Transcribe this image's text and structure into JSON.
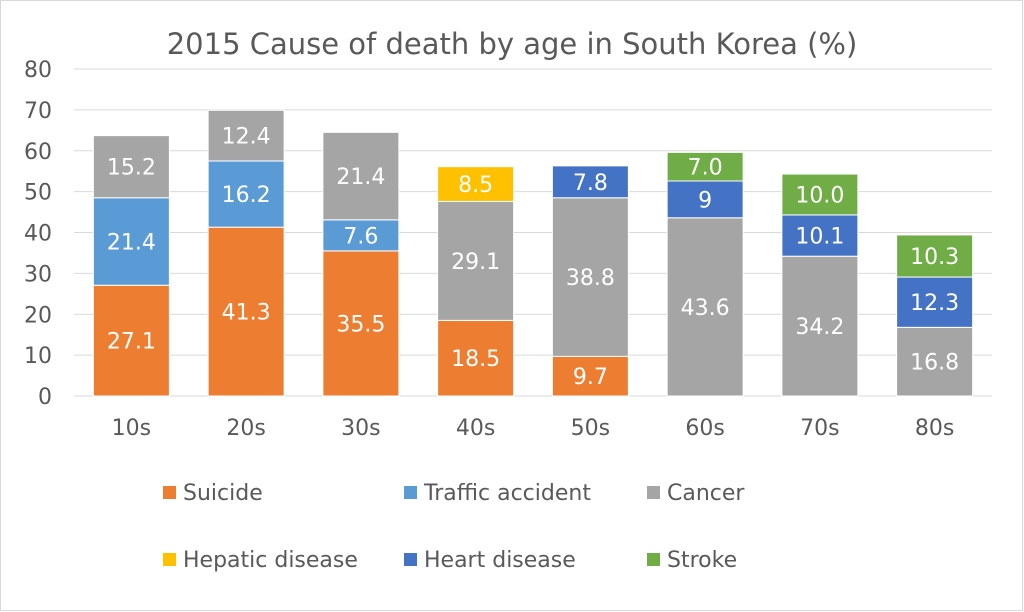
{
  "chart_data": {
    "type": "bar",
    "stacked": true,
    "title": "2015 Cause of death by age in South  Korea (%)",
    "xlabel": "",
    "ylabel": "",
    "ylim": [
      0,
      80
    ],
    "yticks": [
      "0",
      "10",
      "20",
      "30",
      "40",
      "50",
      "60",
      "70",
      "80"
    ],
    "grid": true,
    "legend_position": "bottom",
    "categories": [
      "10s",
      "20s",
      "30s",
      "40s",
      "50s",
      "60s",
      "70s",
      "80s"
    ],
    "series": [
      {
        "name": "Suicide",
        "color": "#ed7d31",
        "values": [
          27.1,
          41.3,
          35.5,
          18.5,
          9.7,
          null,
          null,
          null
        ],
        "labels": [
          "27.1",
          "41.3",
          "35.5",
          "18.5",
          "9.7",
          null,
          null,
          null
        ]
      },
      {
        "name": "Traffic accident",
        "color": "#5b9bd5",
        "values": [
          21.4,
          16.2,
          7.6,
          null,
          null,
          null,
          null,
          null
        ],
        "labels": [
          "21.4",
          "16.2",
          "7.6",
          null,
          null,
          null,
          null,
          null
        ]
      },
      {
        "name": "Cancer",
        "color": "#a5a5a5",
        "values": [
          15.2,
          12.4,
          21.4,
          29.1,
          38.8,
          43.6,
          34.2,
          16.8
        ],
        "labels": [
          "15.2",
          "12.4",
          "21.4",
          "29.1",
          "38.8",
          "43.6",
          "34.2",
          "16.8"
        ]
      },
      {
        "name": "Hepatic disease",
        "color": "#ffc000",
        "values": [
          null,
          null,
          null,
          8.5,
          null,
          null,
          null,
          null
        ],
        "labels": [
          null,
          null,
          null,
          "8.5",
          null,
          null,
          null,
          null
        ]
      },
      {
        "name": "Heart disease",
        "color": "#4472c4",
        "values": [
          null,
          null,
          null,
          null,
          7.8,
          9,
          10.1,
          12.3
        ],
        "labels": [
          null,
          null,
          null,
          null,
          "7.8",
          "9",
          "10.1",
          "12.3"
        ]
      },
      {
        "name": "Stroke",
        "color": "#70ad47",
        "values": [
          null,
          null,
          null,
          null,
          null,
          7.0,
          10.0,
          10.3
        ],
        "labels": [
          null,
          null,
          null,
          null,
          null,
          "7.0",
          "10.0",
          "10.3"
        ]
      }
    ]
  }
}
